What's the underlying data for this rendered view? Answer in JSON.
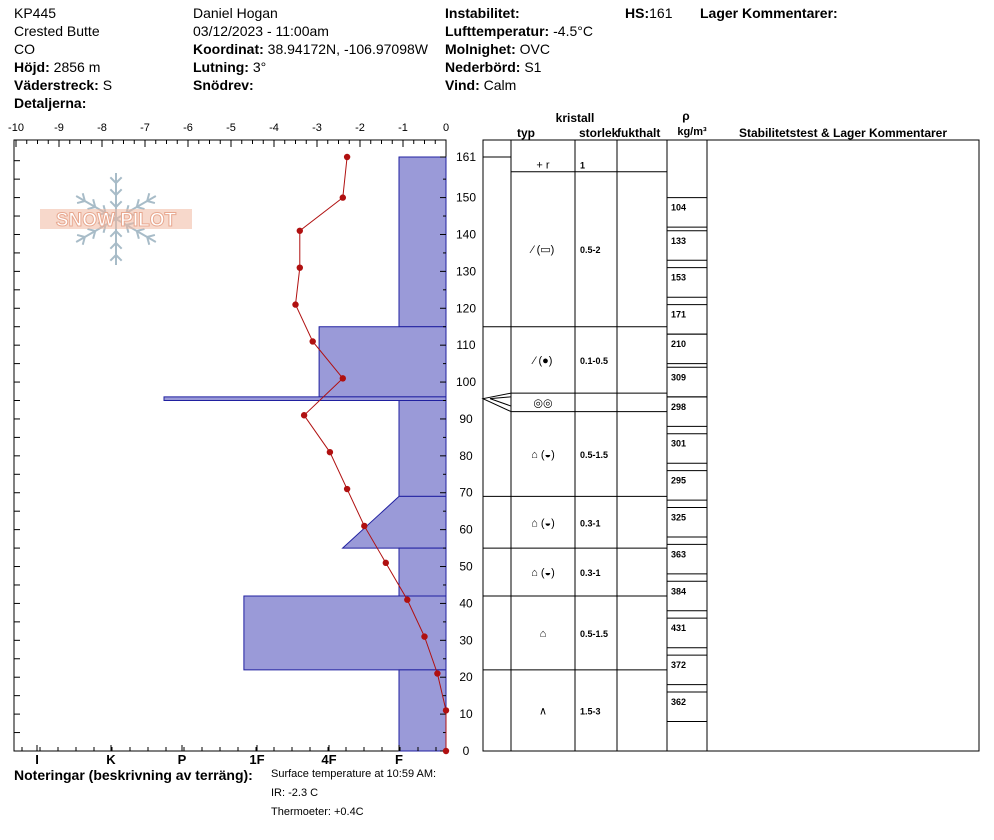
{
  "header": {
    "id": "KP445",
    "location": "Crested Butte",
    "state": "CO",
    "elevation_label": "Höjd:",
    "elevation": "2856 m",
    "aspect_label": "Väderstreck:",
    "aspect": "S",
    "details_label": "Detaljerna:",
    "observer": "Daniel Hogan",
    "datetime": "03/12/2023 - 11:00am",
    "coord_label": "Koordinat:",
    "coord": "38.94172N, -106.97098W",
    "slope_label": "Lutning:",
    "slope": "3°",
    "drift_label": "Snödrev:",
    "instability_label": "Instabilitet:",
    "airtemp_label": "Lufttemperatur:",
    "airtemp": "-4.5°C",
    "sky_label": "Molnighet:",
    "sky": "OVC",
    "precip_label": "Nederbörd:",
    "precip": "S1",
    "wind_label": "Vind:",
    "wind": "Calm",
    "hs_label": "HS:",
    "hs": "161",
    "layer_comments_label": "Lager Kommentarer:"
  },
  "notes": {
    "label": "Noteringar (beskrivning av terräng):",
    "lines": [
      "Surface temperature at 10:59 AM:",
      "IR: -2.3 C",
      "Thermoeter: +0.4C"
    ]
  },
  "logo": {
    "text": "SNOW PILOT"
  },
  "table_headers": {
    "crystal": "kristall",
    "type": "typ",
    "size": "storlek",
    "moisture": "fukthalt",
    "rho": "ρ",
    "density_unit": "kg/m³",
    "stability": "Stabilitetstest & Lager Kommentarer"
  },
  "chart_data": {
    "type": "snow_profile",
    "x_top_label_values": [
      "-10",
      "-9",
      "-8",
      "-7",
      "-6",
      "-5",
      "-4",
      "-3",
      "-2",
      "-1",
      "0"
    ],
    "x_temp_range": [
      -10,
      0
    ],
    "hardness_labels": [
      "I",
      "K",
      "P",
      "1F",
      "4F",
      "F"
    ],
    "y_ticks": [
      0,
      10,
      20,
      30,
      40,
      50,
      60,
      70,
      80,
      90,
      100,
      110,
      120,
      130,
      140,
      150,
      161
    ],
    "y_range": [
      0,
      161
    ],
    "temperature_profile": [
      {
        "depth": 161,
        "temp": -2.3
      },
      {
        "depth": 150,
        "temp": -2.4
      },
      {
        "depth": 141,
        "temp": -3.4
      },
      {
        "depth": 131,
        "temp": -3.4
      },
      {
        "depth": 121,
        "temp": -3.5
      },
      {
        "depth": 111,
        "temp": -3.1
      },
      {
        "depth": 101,
        "temp": -2.4
      },
      {
        "depth": 91,
        "temp": -3.3
      },
      {
        "depth": 81,
        "temp": -2.7
      },
      {
        "depth": 71,
        "temp": -2.3
      },
      {
        "depth": 61,
        "temp": -1.9
      },
      {
        "depth": 51,
        "temp": -1.4
      },
      {
        "depth": 41,
        "temp": -0.9
      },
      {
        "depth": 31,
        "temp": -0.5
      },
      {
        "depth": 21,
        "temp": -0.2
      },
      {
        "depth": 11,
        "temp": 0.0
      },
      {
        "depth": 0,
        "temp": 0.0
      }
    ],
    "hardness_profile": [
      {
        "top": 161,
        "bottom": 115,
        "hardness_top": 1.0,
        "hardness_bottom": 1.0
      },
      {
        "top": 115,
        "bottom": 96,
        "hardness_top": 2.7,
        "hardness_bottom": 2.7
      },
      {
        "top": 96,
        "bottom": 95,
        "hardness_top": 6.0,
        "hardness_bottom": 6.0
      },
      {
        "top": 95,
        "bottom": 69,
        "hardness_top": 1.0,
        "hardness_bottom": 1.0
      },
      {
        "top": 69,
        "bottom": 55,
        "hardness_top": 1.0,
        "hardness_bottom": 2.2
      },
      {
        "top": 55,
        "bottom": 42,
        "hardness_top": 1.0,
        "hardness_bottom": 1.0
      },
      {
        "top": 42,
        "bottom": 22,
        "hardness_top": 4.3,
        "hardness_bottom": 4.3
      },
      {
        "top": 22,
        "bottom": 0,
        "hardness_top": 1.0,
        "hardness_bottom": 1.0
      }
    ],
    "layers": [
      {
        "top": 161,
        "bottom": 157,
        "type": "+ r",
        "size": "1"
      },
      {
        "top": 157,
        "bottom": 115,
        "type": "⁄ (▭)",
        "size": "0.5-2"
      },
      {
        "top": 115,
        "bottom": 97,
        "type": "⁄ (●)",
        "size": "0.1-0.5"
      },
      {
        "top": 97,
        "bottom": 92,
        "type": "◎◎",
        "size": ""
      },
      {
        "top": 92,
        "bottom": 69,
        "type": "⌂ (◒)",
        "size": "0.5-1.5"
      },
      {
        "top": 69,
        "bottom": 55,
        "type": "⌂ (◒)",
        "size": "0.3-1"
      },
      {
        "top": 55,
        "bottom": 42,
        "type": "⌂ (◒)",
        "size": "0.3-1"
      },
      {
        "top": 42,
        "bottom": 22,
        "type": "⌂",
        "size": "0.5-1.5"
      },
      {
        "top": 22,
        "bottom": 0,
        "type": "∧",
        "size": "1.5-3"
      }
    ],
    "densities": [
      {
        "top": 150,
        "bottom": 142,
        "value": "104"
      },
      {
        "top": 141,
        "bottom": 133,
        "value": "133"
      },
      {
        "top": 131,
        "bottom": 123,
        "value": "153"
      },
      {
        "top": 121,
        "bottom": 113,
        "value": "171"
      },
      {
        "top": 113,
        "bottom": 105,
        "value": "210"
      },
      {
        "top": 104,
        "bottom": 96,
        "value": "309"
      },
      {
        "top": 96,
        "bottom": 88,
        "value": "298"
      },
      {
        "top": 86,
        "bottom": 78,
        "value": "301"
      },
      {
        "top": 76,
        "bottom": 68,
        "value": "295"
      },
      {
        "top": 66,
        "bottom": 58,
        "value": "325"
      },
      {
        "top": 56,
        "bottom": 48,
        "value": "363"
      },
      {
        "top": 46,
        "bottom": 38,
        "value": "384"
      },
      {
        "top": 36,
        "bottom": 28,
        "value": "431"
      },
      {
        "top": 26,
        "bottom": 18,
        "value": "372"
      },
      {
        "top": 16,
        "bottom": 8,
        "value": "362"
      }
    ],
    "colors": {
      "hardness_fill": "#9a9ad8",
      "hardness_stroke": "#2020a0",
      "temp_line": "#b01010",
      "temp_marker": "#b01010",
      "logo": "#f0b8a0",
      "snowflake": "#a8bcc8"
    }
  }
}
